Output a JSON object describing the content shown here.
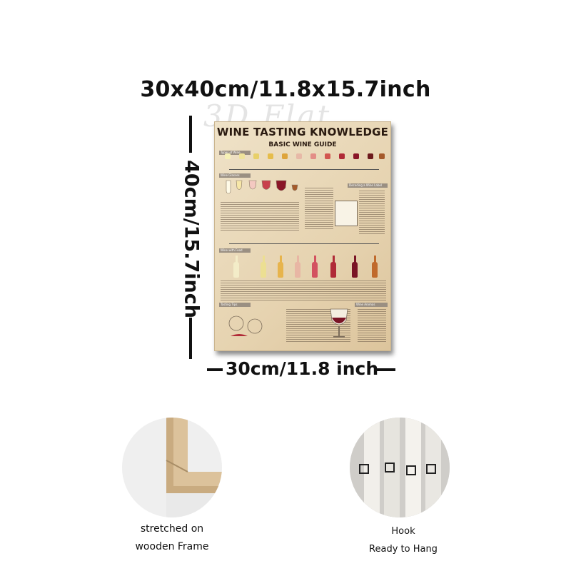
{
  "dimensions": {
    "top_label": "30x40cm/11.8x15.7inch",
    "side_label": "40cm/15.7inch",
    "bottom_label": "30cm/11.8 inch"
  },
  "poster": {
    "title": "WINE TASTING KNOWLEDGE",
    "subtitle": "BASIC WINE GUIDE",
    "sections": [
      "Types of Wine",
      "Wine Glasses",
      "Decoding a Wine Label",
      "Wine with Food",
      "Tasting Tips",
      "Wine Aromas"
    ]
  },
  "features": {
    "frame_caption_line1": "stretched on",
    "frame_caption_line2": "wooden Frame",
    "hook_caption_line1": "Hook",
    "hook_caption_line2": "Ready to Hang"
  }
}
